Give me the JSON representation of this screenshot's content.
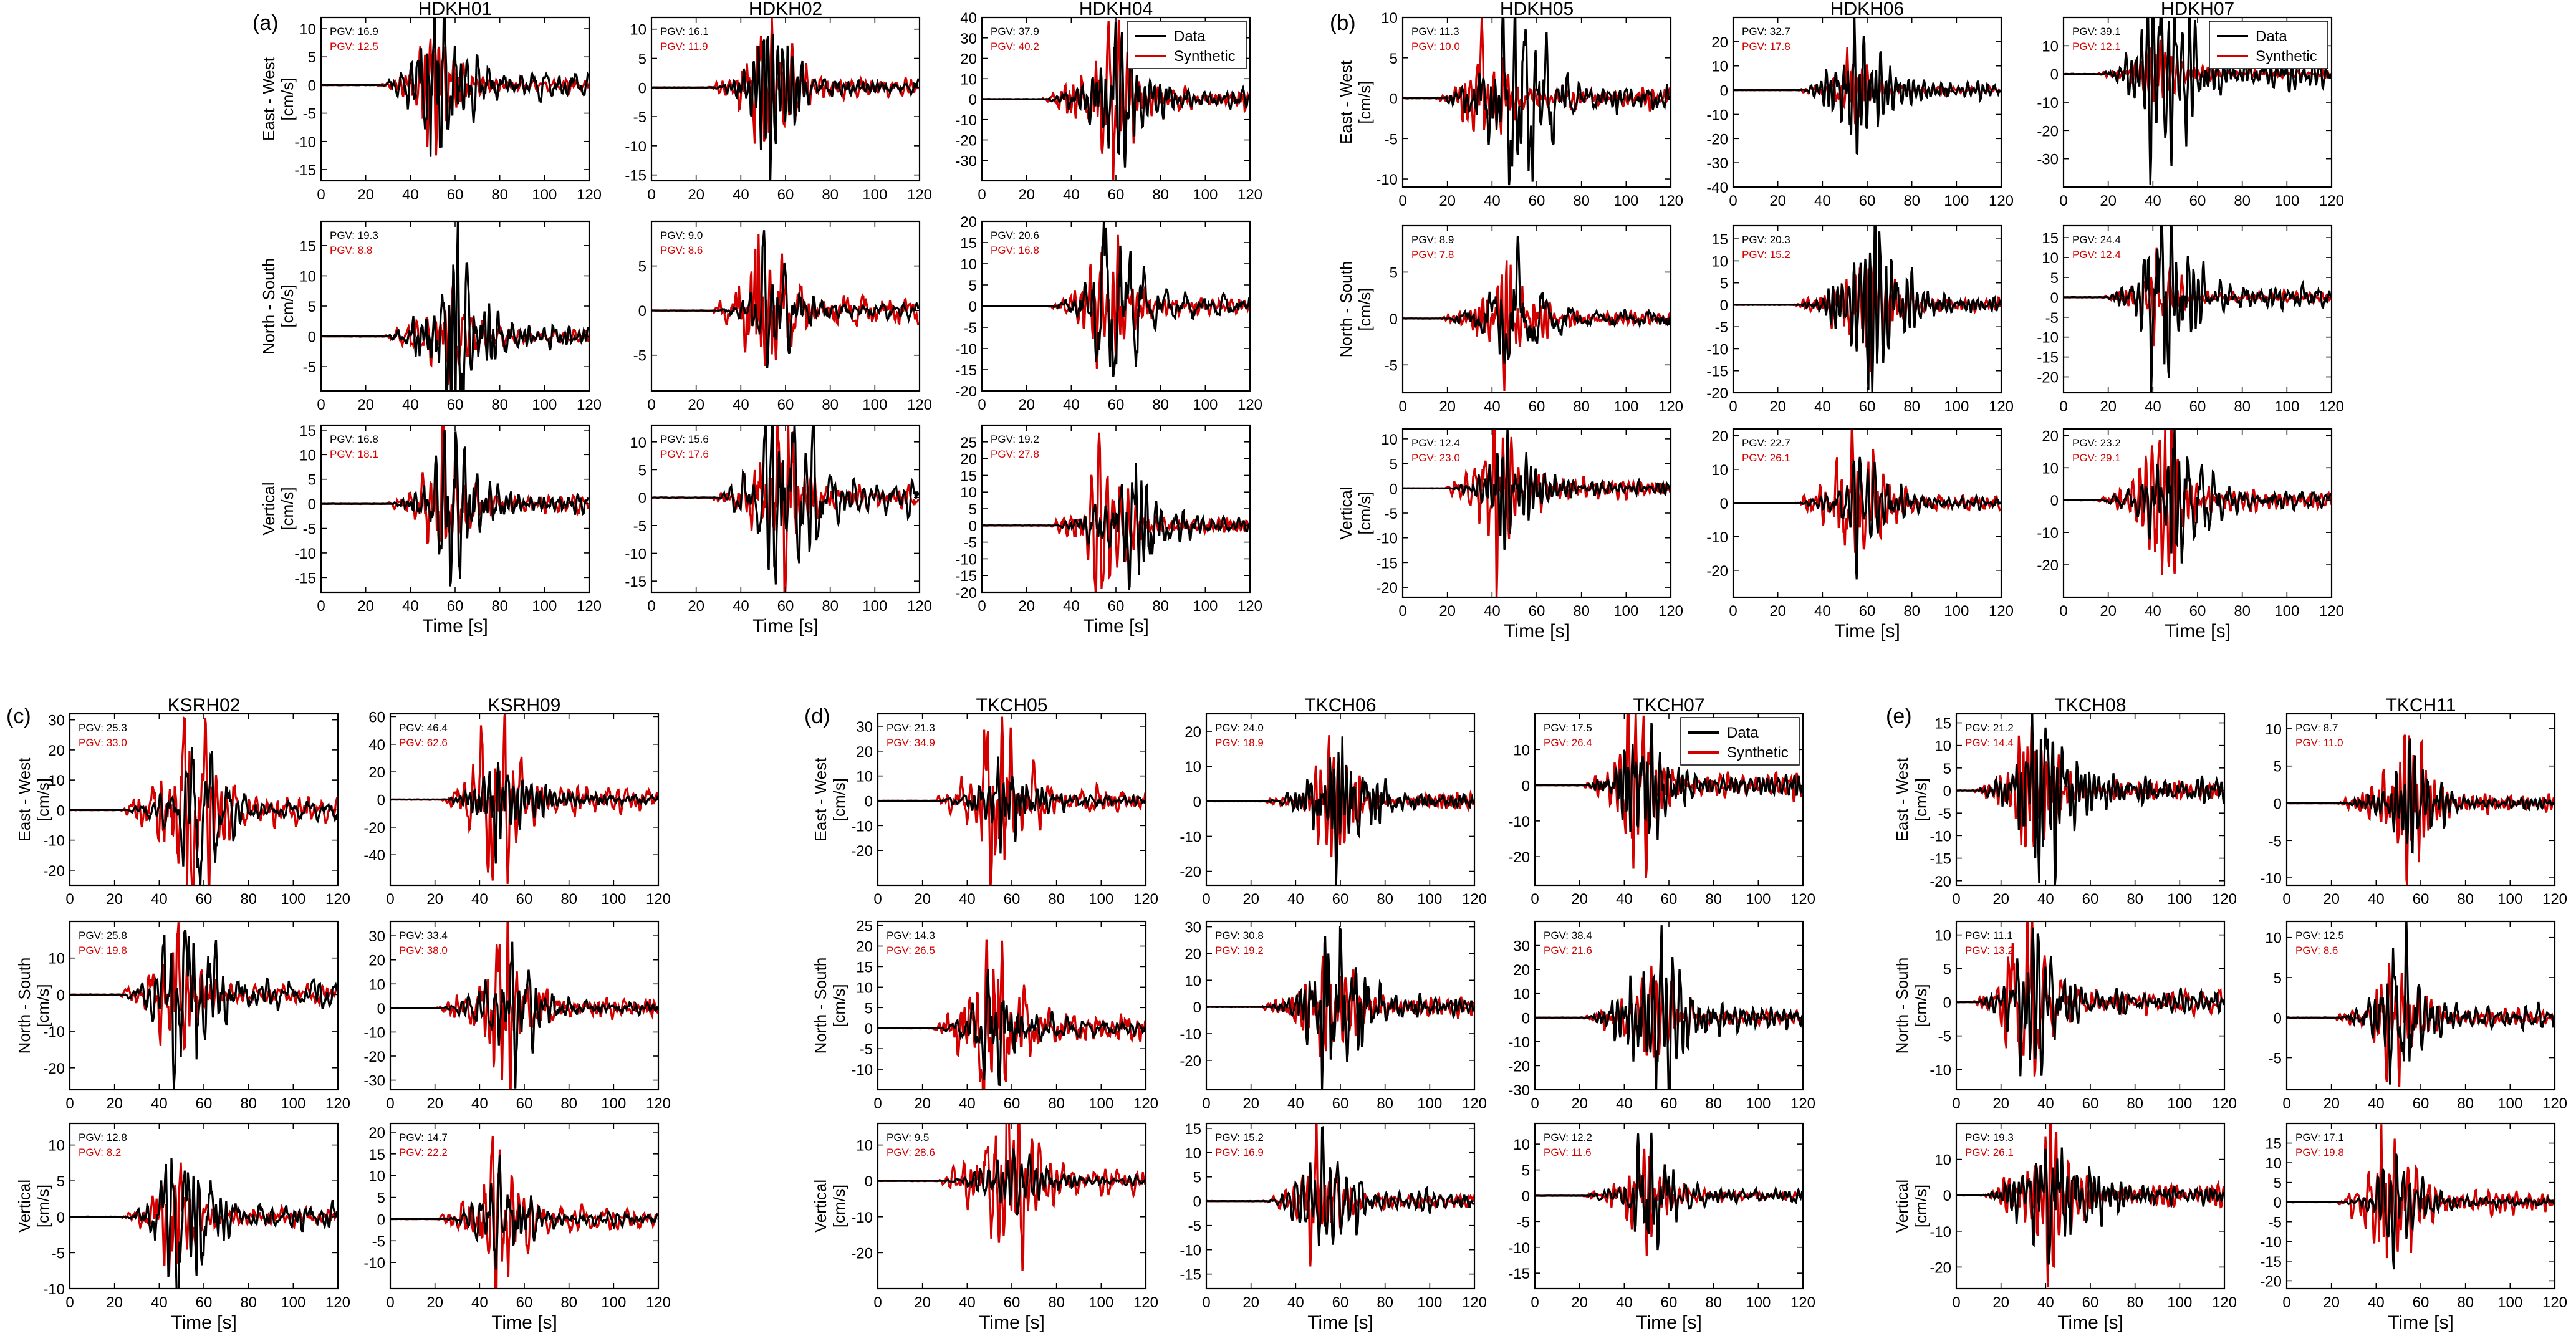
{
  "figure": {
    "legend": {
      "data": "Data",
      "synthetic": "Synthetic"
    },
    "pgv_label": "PGV:",
    "x_axis_label": "Time [s]",
    "components": [
      "East - West",
      "North - South",
      "Vertical"
    ],
    "component_unit": "[cm/s]",
    "colors": {
      "data": "#000000",
      "synthetic": "#d40000"
    },
    "x_range": [
      0,
      120
    ],
    "x_ticks": [
      0,
      20,
      40,
      60,
      80,
      100,
      120
    ]
  },
  "chart_data": [
    {
      "group": "(a)",
      "type": "line",
      "legend_station": "HDKH04",
      "stations": [
        {
          "name": "HDKH01",
          "components": [
            {
              "ylim": [
                -17,
                12
              ],
              "yticks": [
                -15,
                -10,
                -5,
                0,
                5,
                10
              ],
              "pgv_data": "16.9",
              "pgv_synthetic": "12.5",
              "arrival": 38,
              "data_peak": 16.9,
              "synthetic_peak": 12.5
            },
            {
              "ylim": [
                -9,
                19
              ],
              "yticks": [
                -5,
                0,
                5,
                10,
                15
              ],
              "pgv_data": "19.3",
              "pgv_synthetic": "8.8",
              "arrival": 40,
              "data_peak": 19.3,
              "synthetic_peak": 8.8
            },
            {
              "ylim": [
                -18,
                16
              ],
              "yticks": [
                -15,
                -10,
                -5,
                0,
                5,
                10,
                15
              ],
              "pgv_data": "16.8",
              "pgv_synthetic": "18.1",
              "arrival": 42,
              "data_peak": 16.8,
              "synthetic_peak": 18.1
            }
          ]
        },
        {
          "name": "HDKH02",
          "components": [
            {
              "ylim": [
                -16,
                12
              ],
              "yticks": [
                -15,
                -10,
                -5,
                0,
                5,
                10
              ],
              "pgv_data": "16.1",
              "pgv_synthetic": "11.9",
              "arrival": 38,
              "data_peak": 16.1,
              "synthetic_peak": 11.9
            },
            {
              "ylim": [
                -9,
                10
              ],
              "yticks": [
                -5,
                0,
                5
              ],
              "pgv_data": "9.0",
              "pgv_synthetic": "8.6",
              "arrival": 40,
              "data_peak": 9.0,
              "synthetic_peak": 8.6
            },
            {
              "ylim": [
                -17,
                13
              ],
              "yticks": [
                -15,
                -10,
                -5,
                0,
                5,
                10
              ],
              "pgv_data": "15.6",
              "pgv_synthetic": "17.6",
              "arrival": 40,
              "data_peak": 15.6,
              "synthetic_peak": 17.6
            }
          ]
        },
        {
          "name": "HDKH04",
          "components": [
            {
              "ylim": [
                -40,
                40
              ],
              "yticks": [
                -30,
                -20,
                -10,
                0,
                10,
                20,
                30,
                40
              ],
              "pgv_data": "37.9",
              "pgv_synthetic": "40.2",
              "arrival": 40,
              "data_peak": 37.9,
              "synthetic_peak": 40.2
            },
            {
              "ylim": [
                -20,
                20
              ],
              "yticks": [
                -20,
                -15,
                -10,
                -5,
                0,
                5,
                10,
                15,
                20
              ],
              "pgv_data": "20.6",
              "pgv_synthetic": "16.8",
              "arrival": 42,
              "data_peak": 20.6,
              "synthetic_peak": 16.8
            },
            {
              "ylim": [
                -20,
                30
              ],
              "yticks": [
                -20,
                -15,
                -10,
                -5,
                0,
                5,
                10,
                15,
                20,
                25
              ],
              "pgv_data": "19.2",
              "pgv_synthetic": "27.8",
              "arrival": 44,
              "data_peak": 19.2,
              "synthetic_peak": 27.8
            }
          ]
        }
      ]
    },
    {
      "group": "(b)",
      "type": "line",
      "legend_station": "HDKH07",
      "stations": [
        {
          "name": "HDKH05",
          "components": [
            {
              "ylim": [
                -11,
                10
              ],
              "yticks": [
                -10,
                -5,
                0,
                5,
                10
              ],
              "pgv_data": "11.3",
              "pgv_synthetic": "10.0",
              "arrival": 28,
              "data_peak": 11.3,
              "synthetic_peak": 10.0
            },
            {
              "ylim": [
                -8,
                10
              ],
              "yticks": [
                -5,
                0,
                5
              ],
              "pgv_data": "8.9",
              "pgv_synthetic": "7.8",
              "arrival": 30,
              "data_peak": 8.9,
              "synthetic_peak": 7.8
            },
            {
              "ylim": [
                -22,
                12
              ],
              "yticks": [
                -20,
                -15,
                -10,
                -5,
                0,
                5,
                10
              ],
              "pgv_data": "12.4",
              "pgv_synthetic": "23.0",
              "arrival": 32,
              "data_peak": 12.4,
              "synthetic_peak": 23.0
            }
          ]
        },
        {
          "name": "HDKH06",
          "components": [
            {
              "ylim": [
                -40,
                30
              ],
              "yticks": [
                -40,
                -30,
                -20,
                -10,
                0,
                10,
                20
              ],
              "pgv_data": "32.7",
              "pgv_synthetic": "17.8",
              "arrival": 40,
              "data_peak": 32.7,
              "synthetic_peak": 17.8
            },
            {
              "ylim": [
                -20,
                18
              ],
              "yticks": [
                -20,
                -15,
                -10,
                -5,
                0,
                5,
                10,
                15
              ],
              "pgv_data": "20.3",
              "pgv_synthetic": "15.2",
              "arrival": 40,
              "data_peak": 20.3,
              "synthetic_peak": 15.2
            },
            {
              "ylim": [
                -28,
                22
              ],
              "yticks": [
                -20,
                -10,
                0,
                10,
                20
              ],
              "pgv_data": "22.7",
              "pgv_synthetic": "26.1",
              "arrival": 40,
              "data_peak": 22.7,
              "synthetic_peak": 26.1
            }
          ]
        },
        {
          "name": "HDKH07",
          "components": [
            {
              "ylim": [
                -40,
                20
              ],
              "yticks": [
                -30,
                -20,
                -10,
                0,
                10
              ],
              "pgv_data": "39.1",
              "pgv_synthetic": "12.1",
              "arrival": 28,
              "data_peak": 39.1,
              "synthetic_peak": 12.1
            },
            {
              "ylim": [
                -24,
                18
              ],
              "yticks": [
                -20,
                -15,
                -10,
                -5,
                0,
                5,
                10,
                15
              ],
              "pgv_data": "24.4",
              "pgv_synthetic": "12.4",
              "arrival": 30,
              "data_peak": 24.4,
              "synthetic_peak": 12.4
            },
            {
              "ylim": [
                -30,
                22
              ],
              "yticks": [
                -20,
                -10,
                0,
                10,
                20
              ],
              "pgv_data": "23.2",
              "pgv_synthetic": "29.1",
              "arrival": 28,
              "data_peak": 23.2,
              "synthetic_peak": 29.1
            }
          ]
        }
      ]
    },
    {
      "group": "(c)",
      "type": "line",
      "legend_station": "",
      "stations": [
        {
          "name": "KSRH02",
          "components": [
            {
              "ylim": [
                -25,
                32
              ],
              "yticks": [
                -20,
                -10,
                0,
                10,
                20,
                30
              ],
              "pgv_data": "25.3",
              "pgv_synthetic": "33.0",
              "arrival": 36,
              "data_peak": 25.3,
              "synthetic_peak": 33.0
            },
            {
              "ylim": [
                -26,
                20
              ],
              "yticks": [
                -20,
                -10,
                0,
                10
              ],
              "pgv_data": "25.8",
              "pgv_synthetic": "19.8",
              "arrival": 34,
              "data_peak": 25.8,
              "synthetic_peak": 19.8
            },
            {
              "ylim": [
                -10,
                13
              ],
              "yticks": [
                -10,
                -5,
                0,
                5,
                10
              ],
              "pgv_data": "12.8",
              "pgv_synthetic": "8.2",
              "arrival": 36,
              "data_peak": 12.8,
              "synthetic_peak": 8.2
            }
          ]
        },
        {
          "name": "KSRH09",
          "components": [
            {
              "ylim": [
                -62,
                62
              ],
              "yticks": [
                -40,
                -20,
                0,
                20,
                40,
                60
              ],
              "pgv_data": "46.4",
              "pgv_synthetic": "62.6",
              "arrival": 36,
              "data_peak": 46.4,
              "synthetic_peak": 62.6
            },
            {
              "ylim": [
                -34,
                36
              ],
              "yticks": [
                -30,
                -20,
                -10,
                0,
                10,
                20,
                30
              ],
              "pgv_data": "33.4",
              "pgv_synthetic": "38.0",
              "arrival": 34,
              "data_peak": 33.4,
              "synthetic_peak": 38.0
            },
            {
              "ylim": [
                -16,
                22
              ],
              "yticks": [
                -10,
                -5,
                0,
                5,
                10,
                15,
                20
              ],
              "pgv_data": "14.7",
              "pgv_synthetic": "22.2",
              "arrival": 34,
              "data_peak": 14.7,
              "synthetic_peak": 22.2
            }
          ]
        }
      ]
    },
    {
      "group": "(d)",
      "type": "line",
      "legend_station": "TKCH07",
      "stations": [
        {
          "name": "TKCH05",
          "components": [
            {
              "ylim": [
                -34,
                35
              ],
              "yticks": [
                -20,
                -10,
                0,
                10,
                20,
                30
              ],
              "pgv_data": "21.3",
              "pgv_synthetic": "34.9",
              "arrival": 38,
              "data_peak": 21.3,
              "synthetic_peak": 34.9
            },
            {
              "ylim": [
                -15,
                26
              ],
              "yticks": [
                -10,
                -5,
                0,
                5,
                10,
                15,
                20,
                25
              ],
              "pgv_data": "14.3",
              "pgv_synthetic": "26.5",
              "arrival": 38,
              "data_peak": 14.3,
              "synthetic_peak": 26.5
            },
            {
              "ylim": [
                -30,
                16
              ],
              "yticks": [
                -20,
                -10,
                0,
                10
              ],
              "pgv_data": "9.5",
              "pgv_synthetic": "28.6",
              "arrival": 40,
              "data_peak": 9.5,
              "synthetic_peak": 28.6
            }
          ]
        },
        {
          "name": "TKCH06",
          "components": [
            {
              "ylim": [
                -24,
                25
              ],
              "yticks": [
                -20,
                -10,
                0,
                10,
                20
              ],
              "pgv_data": "24.0",
              "pgv_synthetic": "18.9",
              "arrival": 38,
              "data_peak": 24.0,
              "synthetic_peak": 18.9
            },
            {
              "ylim": [
                -31,
                32
              ],
              "yticks": [
                -20,
                -10,
                0,
                10,
                20,
                30
              ],
              "pgv_data": "30.8",
              "pgv_synthetic": "19.2",
              "arrival": 38,
              "data_peak": 30.8,
              "synthetic_peak": 19.2
            },
            {
              "ylim": [
                -18,
                16
              ],
              "yticks": [
                -15,
                -10,
                -5,
                0,
                5,
                10,
                15
              ],
              "pgv_data": "15.2",
              "pgv_synthetic": "16.9",
              "arrival": 38,
              "data_peak": 15.2,
              "synthetic_peak": 16.9
            }
          ]
        },
        {
          "name": "TKCH07",
          "components": [
            {
              "ylim": [
                -28,
                20
              ],
              "yticks": [
                -20,
                -10,
                0,
                10
              ],
              "pgv_data": "17.5",
              "pgv_synthetic": "26.4",
              "arrival": 34,
              "data_peak": 17.5,
              "synthetic_peak": 26.4
            },
            {
              "ylim": [
                -30,
                40
              ],
              "yticks": [
                -30,
                -20,
                -10,
                0,
                10,
                20,
                30
              ],
              "pgv_data": "38.4",
              "pgv_synthetic": "21.6",
              "arrival": 34,
              "data_peak": 38.4,
              "synthetic_peak": 21.6
            },
            {
              "ylim": [
                -18,
                14
              ],
              "yticks": [
                -15,
                -10,
                -5,
                0,
                5,
                10
              ],
              "pgv_data": "12.2",
              "pgv_synthetic": "11.6",
              "arrival": 34,
              "data_peak": 12.2,
              "synthetic_peak": 11.6
            }
          ]
        }
      ]
    },
    {
      "group": "(e)",
      "type": "line",
      "legend_station": "",
      "stations": [
        {
          "name": "TKCH08",
          "components": [
            {
              "ylim": [
                -21,
                17
              ],
              "yticks": [
                -20,
                -15,
                -10,
                -5,
                0,
                5,
                10,
                15
              ],
              "pgv_data": "21.2",
              "pgv_synthetic": "14.4",
              "arrival": 20,
              "data_peak": 21.2,
              "synthetic_peak": 14.4
            },
            {
              "ylim": [
                -13,
                12
              ],
              "yticks": [
                -10,
                -5,
                0,
                5,
                10
              ],
              "pgv_data": "11.1",
              "pgv_synthetic": "13.2",
              "arrival": 20,
              "data_peak": 11.1,
              "synthetic_peak": 13.2
            },
            {
              "ylim": [
                -26,
                20
              ],
              "yticks": [
                -20,
                -10,
                0,
                10
              ],
              "pgv_data": "19.3",
              "pgv_synthetic": "26.1",
              "arrival": 24,
              "data_peak": 19.3,
              "synthetic_peak": 26.1
            }
          ]
        },
        {
          "name": "TKCH11",
          "components": [
            {
              "ylim": [
                -11,
                12
              ],
              "yticks": [
                -10,
                -5,
                0,
                5,
                10
              ],
              "pgv_data": "8.7",
              "pgv_synthetic": "11.0",
              "arrival": 36,
              "data_peak": 8.7,
              "synthetic_peak": 11.0
            },
            {
              "ylim": [
                -9,
                12
              ],
              "yticks": [
                -5,
                0,
                5,
                10
              ],
              "pgv_data": "12.5",
              "pgv_synthetic": "8.6",
              "arrival": 34,
              "data_peak": 12.5,
              "synthetic_peak": 8.6
            },
            {
              "ylim": [
                -22,
                20
              ],
              "yticks": [
                -20,
                -15,
                -10,
                -5,
                0,
                5,
                10,
                15
              ],
              "pgv_data": "17.1",
              "pgv_synthetic": "19.8",
              "arrival": 36,
              "data_peak": 17.1,
              "synthetic_peak": 19.8
            }
          ]
        }
      ]
    }
  ]
}
